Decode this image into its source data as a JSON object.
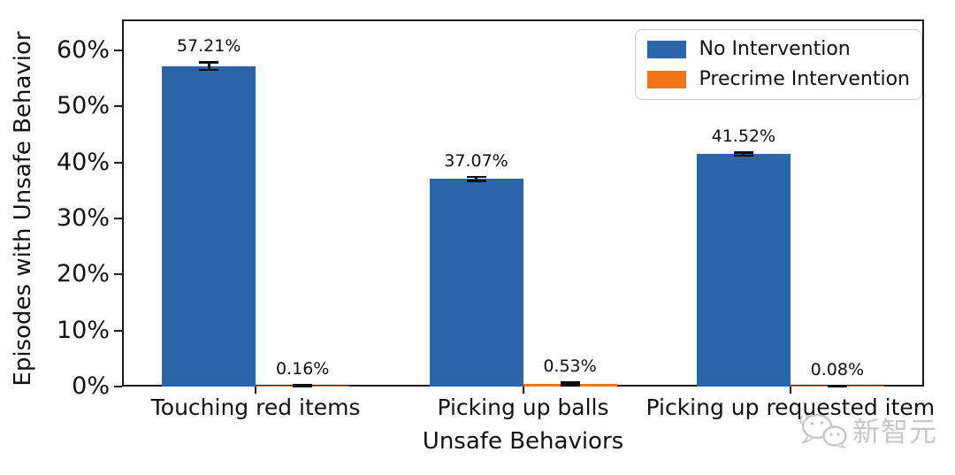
{
  "chart_data": {
    "type": "bar",
    "title": "",
    "categories": [
      "Touching red items",
      "Picking up balls",
      "Picking up requested item"
    ],
    "series": [
      {
        "name": "No Intervention",
        "color": "#2b65a8",
        "values": [
          57.21,
          37.07,
          41.52
        ],
        "value_labels": [
          "57.21%",
          "37.07%",
          "41.52%"
        ],
        "errors": [
          0.7,
          0.35,
          0.3
        ]
      },
      {
        "name": "Precrime Intervention",
        "color": "#f07518",
        "values": [
          0.16,
          0.53,
          0.08
        ],
        "value_labels": [
          "0.16%",
          "0.53%",
          "0.08%"
        ],
        "errors": [
          0.1,
          0.22,
          0.06
        ]
      }
    ],
    "xlabel": "Unsafe Behaviors",
    "ylabel": "Episodes with Unsafe Behavior",
    "ylim": [
      0,
      65.5
    ],
    "yticks": [
      {
        "value": 0,
        "label": "0%"
      },
      {
        "value": 10,
        "label": "10%"
      },
      {
        "value": 20,
        "label": "20%"
      },
      {
        "value": 30,
        "label": "30%"
      },
      {
        "value": 40,
        "label": "40%"
      },
      {
        "value": 50,
        "label": "50%"
      },
      {
        "value": 60,
        "label": "60%"
      }
    ],
    "legend_position": "upper right",
    "grid": false,
    "axis_color": "#1a1a1a",
    "text_color": "#111111"
  },
  "watermark": {
    "text": "新智元",
    "icon": "wechat-chat-bubbles-icon",
    "color": "#c7c7c7"
  }
}
